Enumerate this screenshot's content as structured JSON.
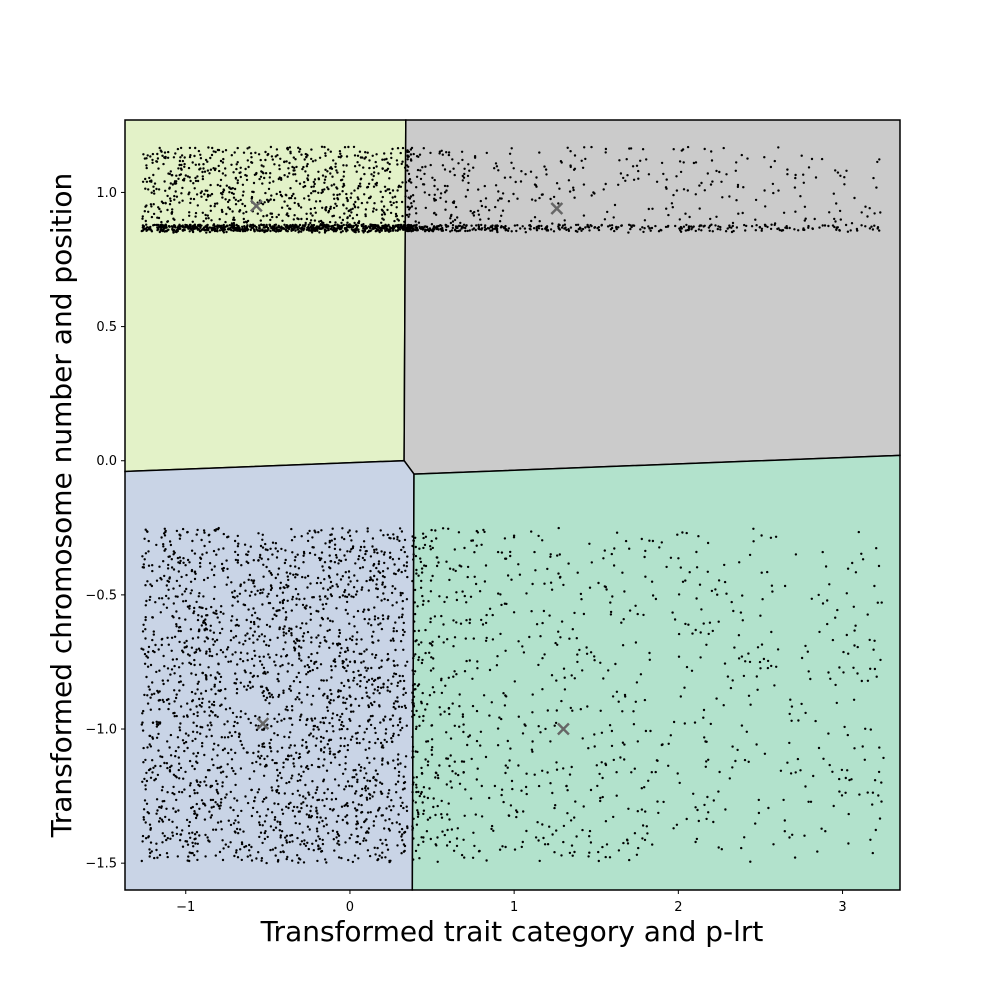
{
  "chart_data": {
    "type": "scatter",
    "title": "",
    "xlabel": "Transformed trait category and p-lrt",
    "ylabel": "Transformed chromosome number and position",
    "xlim": [
      -1.37,
      3.35
    ],
    "ylim": [
      -1.6,
      1.27
    ],
    "xticks": [
      -1,
      0,
      1,
      2,
      3
    ],
    "xtick_labels": [
      "−1",
      "0",
      "1",
      "2",
      "3"
    ],
    "yticks": [
      1.0,
      0.5,
      0.0,
      -0.5,
      -1.0,
      -1.5
    ],
    "ytick_labels": [
      "1.0",
      "0.5",
      "0.0",
      "−0.5",
      "−1.0",
      "−1.5"
    ],
    "grid": false,
    "legend": "none",
    "regions": [
      {
        "name": "top-left",
        "color": "#e3f2c8",
        "polygon": [
          [
            -1.37,
            1.27
          ],
          [
            0.34,
            1.27
          ],
          [
            0.33,
            0.0
          ],
          [
            -1.37,
            -0.04
          ]
        ]
      },
      {
        "name": "top-right",
        "color": "#cbcbcb",
        "polygon": [
          [
            0.34,
            1.27
          ],
          [
            3.35,
            1.27
          ],
          [
            3.35,
            0.02
          ],
          [
            0.39,
            -0.05
          ],
          [
            0.33,
            0.0
          ]
        ]
      },
      {
        "name": "bottom-left",
        "color": "#c9d4e6",
        "polygon": [
          [
            -1.37,
            -0.04
          ],
          [
            0.33,
            0.0
          ],
          [
            0.39,
            -0.05
          ],
          [
            0.38,
            -1.6
          ],
          [
            -1.37,
            -1.6
          ]
        ]
      },
      {
        "name": "bottom-right",
        "color": "#b2e2cc",
        "polygon": [
          [
            0.39,
            -0.05
          ],
          [
            3.35,
            0.02
          ],
          [
            3.35,
            -1.6
          ],
          [
            0.38,
            -1.6
          ]
        ]
      }
    ],
    "clusters": [
      {
        "name": "top-left",
        "count": 1500,
        "x_range": [
          -1.27,
          0.35
        ],
        "y_range": [
          0.85,
          1.17
        ],
        "band_y": [
          0.855,
          0.88
        ],
        "band_fraction": 0.45
      },
      {
        "name": "top-right",
        "count": 750,
        "x_range": [
          0.35,
          3.25
        ],
        "y_range": [
          0.85,
          1.17
        ],
        "band_y": [
          0.855,
          0.88
        ],
        "band_fraction": 0.45,
        "x_skew": 1.8
      },
      {
        "name": "bottom-left",
        "count": 2200,
        "x_range": [
          -1.27,
          0.35
        ],
        "y_range": [
          -1.5,
          -0.25
        ]
      },
      {
        "name": "bottom-right",
        "count": 950,
        "x_range": [
          0.38,
          3.25
        ],
        "y_range": [
          -1.5,
          -0.25
        ],
        "x_skew": 1.6
      }
    ],
    "centroids": [
      {
        "x": -0.57,
        "y": 0.95
      },
      {
        "x": 1.26,
        "y": 0.94
      },
      {
        "x": -0.53,
        "y": -0.98
      },
      {
        "x": 1.3,
        "y": -1.0
      }
    ],
    "point_color": "#000000",
    "centroid_color": "#666666"
  }
}
